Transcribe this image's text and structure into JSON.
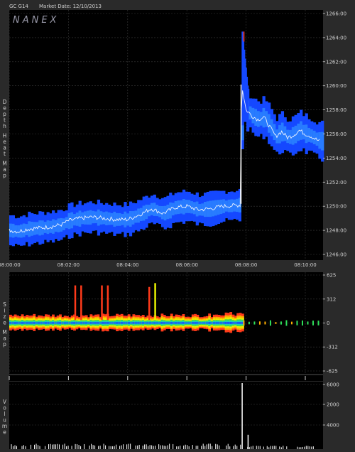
{
  "header": {
    "symbol": "GC G14",
    "market_date": "Market Date: 12/10/2013",
    "brand": "NANEX"
  },
  "side_labels": {
    "depth": "Depth Heat Map",
    "size": "Size Map",
    "volume": "Volume"
  },
  "colors": {
    "frame_bg": "#2a2a2a",
    "panel_bg": "#000000",
    "grid": "#3a3a3a",
    "text": "#d0d0d0",
    "heat_blue": "#1548ff",
    "heat_light": "#39a8ff",
    "trade_line": "#ffffff",
    "hot": "#ff3a1a"
  },
  "chart_data": [
    {
      "type": "heatmap",
      "title": "Depth Heat Map",
      "x_ticks": [
        "08:00:00",
        "08:02:00",
        "08:04:00",
        "08:06:00",
        "08:08:00",
        "08:10:00"
      ],
      "y_ticks": [
        "1246:00",
        "1248:00",
        "1250:00",
        "1252:00",
        "1254:00",
        "1256:00",
        "1258:00",
        "1260:00",
        "1262:00",
        "1264:00",
        "1266:00"
      ],
      "xlim_minutes": [
        0,
        10.6
      ],
      "ylim": [
        1246,
        1266
      ],
      "grid": true,
      "price_path": [
        {
          "t": 0.0,
          "p": 1248.0
        },
        {
          "t": 0.3,
          "p": 1247.9
        },
        {
          "t": 0.6,
          "p": 1248.1
        },
        {
          "t": 1.0,
          "p": 1248.2
        },
        {
          "t": 1.4,
          "p": 1248.3
        },
        {
          "t": 1.8,
          "p": 1248.5
        },
        {
          "t": 2.0,
          "p": 1248.8
        },
        {
          "t": 2.4,
          "p": 1249.0
        },
        {
          "t": 2.8,
          "p": 1249.1
        },
        {
          "t": 3.2,
          "p": 1249.0
        },
        {
          "t": 3.6,
          "p": 1248.9
        },
        {
          "t": 4.0,
          "p": 1248.9
        },
        {
          "t": 4.4,
          "p": 1249.3
        },
        {
          "t": 4.8,
          "p": 1249.8
        },
        {
          "t": 5.2,
          "p": 1249.4
        },
        {
          "t": 5.6,
          "p": 1249.9
        },
        {
          "t": 6.0,
          "p": 1250.0
        },
        {
          "t": 6.4,
          "p": 1249.7
        },
        {
          "t": 6.8,
          "p": 1249.8
        },
        {
          "t": 7.2,
          "p": 1250.0
        },
        {
          "t": 7.8,
          "p": 1250.1
        },
        {
          "t": 7.85,
          "p": 1260.1
        },
        {
          "t": 8.0,
          "p": 1258.0
        },
        {
          "t": 8.2,
          "p": 1257.5
        },
        {
          "t": 8.4,
          "p": 1257.2
        },
        {
          "t": 8.6,
          "p": 1257.4
        },
        {
          "t": 8.8,
          "p": 1256.6
        },
        {
          "t": 9.0,
          "p": 1255.8
        },
        {
          "t": 9.2,
          "p": 1256.2
        },
        {
          "t": 9.4,
          "p": 1255.7
        },
        {
          "t": 9.6,
          "p": 1255.9
        },
        {
          "t": 9.8,
          "p": 1256.3
        },
        {
          "t": 10.0,
          "p": 1256.0
        },
        {
          "t": 10.2,
          "p": 1255.8
        },
        {
          "t": 10.4,
          "p": 1255.5
        },
        {
          "t": 10.5,
          "p": 1255.4
        }
      ],
      "spike_high": 1264.5
    },
    {
      "type": "heatmap",
      "title": "Size Map",
      "y_ticks": [
        "625",
        "312",
        "0",
        "-312",
        "-625"
      ],
      "ylim": [
        -625,
        625
      ],
      "grid": true,
      "hot_spikes": [
        {
          "t": 2.2,
          "v": 490
        },
        {
          "t": 2.4,
          "v": 490
        },
        {
          "t": 3.1,
          "v": 490
        },
        {
          "t": 3.3,
          "v": 490
        },
        {
          "t": 4.7,
          "v": 470
        },
        {
          "t": 4.9,
          "v": 520
        }
      ]
    },
    {
      "type": "bar",
      "title": "Volume",
      "y_ticks": [
        "6000",
        "2000",
        "4000"
      ],
      "spike": {
        "t": 7.85,
        "v": 6000
      },
      "after_spike": {
        "t": 8.05,
        "v": 1200
      }
    }
  ]
}
